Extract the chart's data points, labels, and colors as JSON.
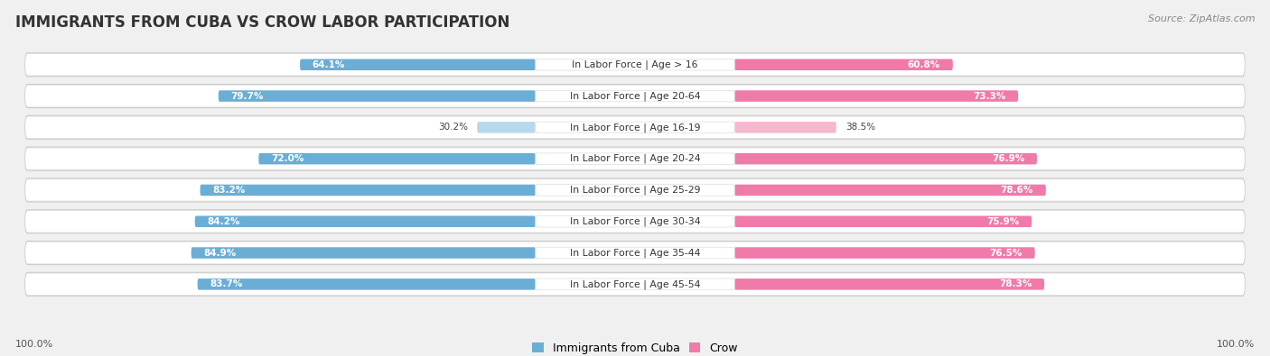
{
  "title": "IMMIGRANTS FROM CUBA VS CROW LABOR PARTICIPATION",
  "source": "Source: ZipAtlas.com",
  "categories": [
    "In Labor Force | Age > 16",
    "In Labor Force | Age 20-64",
    "In Labor Force | Age 16-19",
    "In Labor Force | Age 20-24",
    "In Labor Force | Age 25-29",
    "In Labor Force | Age 30-34",
    "In Labor Force | Age 35-44",
    "In Labor Force | Age 45-54"
  ],
  "cuba_values": [
    64.1,
    79.7,
    30.2,
    72.0,
    83.2,
    84.2,
    84.9,
    83.7
  ],
  "crow_values": [
    60.8,
    73.3,
    38.5,
    76.9,
    78.6,
    75.9,
    76.5,
    78.3
  ],
  "cuba_color": "#6aaed6",
  "crow_color": "#f07aaa",
  "cuba_color_light": "#b8d8ec",
  "crow_color_light": "#f5b8d0",
  "bg_color": "#f0f0f0",
  "row_bg_color": "#e8e8e8",
  "row_inner_color": "#ffffff",
  "label_fontsize": 7.8,
  "value_fontsize": 7.5,
  "title_fontsize": 12,
  "source_fontsize": 8,
  "legend_fontsize": 9,
  "axis_label": "100.0%"
}
